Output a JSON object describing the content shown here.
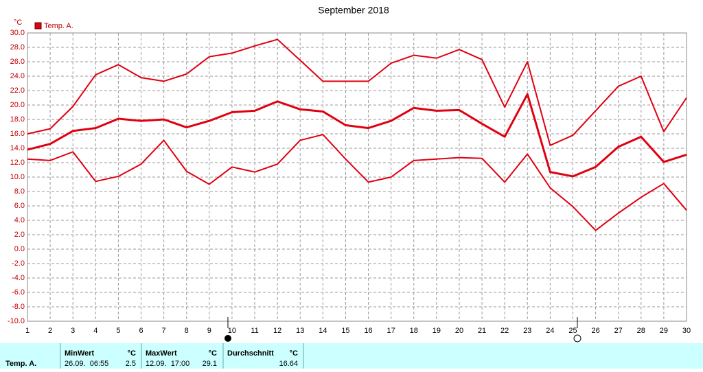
{
  "chart_data": {
    "type": "line",
    "title": "September 2018",
    "ylabel": "°C",
    "x": [
      1,
      2,
      3,
      4,
      5,
      6,
      7,
      8,
      9,
      10,
      11,
      12,
      13,
      14,
      15,
      16,
      17,
      18,
      19,
      20,
      21,
      22,
      23,
      24,
      25,
      26,
      27,
      28,
      29,
      30
    ],
    "xlim": [
      1,
      30
    ],
    "xticks": [
      1,
      2,
      3,
      4,
      5,
      6,
      7,
      8,
      9,
      10,
      11,
      12,
      13,
      14,
      15,
      16,
      17,
      18,
      19,
      20,
      21,
      22,
      23,
      24,
      25,
      26,
      27,
      28,
      29,
      30
    ],
    "ylim": [
      -10,
      30
    ],
    "yticks": [
      {
        "value": -10,
        "label": "-10.0"
      },
      {
        "value": -8,
        "label": "-8.0"
      },
      {
        "value": -6,
        "label": "-6.0"
      },
      {
        "value": -4,
        "label": "-4.0"
      },
      {
        "value": -2,
        "label": "-2.0"
      },
      {
        "value": 0,
        "label": "0.0"
      },
      {
        "value": 2,
        "label": "2.0"
      },
      {
        "value": 4,
        "label": "4.0"
      },
      {
        "value": 6,
        "label": "6.0"
      },
      {
        "value": 8,
        "label": "8.0"
      },
      {
        "value": 10,
        "label": "10.0"
      },
      {
        "value": 12,
        "label": "12.0"
      },
      {
        "value": 14,
        "label": "14.0"
      },
      {
        "value": 16,
        "label": "16.0"
      },
      {
        "value": 18,
        "label": "18.0"
      },
      {
        "value": 20,
        "label": "20.0"
      },
      {
        "value": 22,
        "label": "22.0"
      },
      {
        "value": 24,
        "label": "24.0"
      },
      {
        "value": 26,
        "label": "26.0"
      },
      {
        "value": 28,
        "label": "28.0"
      },
      {
        "value": 30,
        "label": "30.0"
      }
    ],
    "grid": true,
    "series": [
      {
        "name": "Temp. A.",
        "color": "#e00010",
        "values": [
          13.8,
          14.6,
          16.4,
          16.8,
          18.1,
          17.8,
          18.0,
          16.9,
          17.8,
          19.0,
          19.2,
          20.5,
          19.4,
          19.1,
          17.2,
          16.8,
          17.8,
          19.6,
          19.2,
          19.3,
          17.4,
          15.6,
          21.5,
          10.7,
          10.1,
          11.4,
          14.2,
          15.6,
          12.1,
          13.1
        ]
      },
      {
        "color": "#e00010",
        "values": [
          16.0,
          16.7,
          19.8,
          24.2,
          25.6,
          23.8,
          23.3,
          24.3,
          26.7,
          27.2,
          28.2,
          29.1,
          26.2,
          23.3,
          23.3,
          23.3,
          25.8,
          26.9,
          26.5,
          27.7,
          26.3,
          19.7,
          26.0,
          14.4,
          15.8,
          19.2,
          22.6,
          24.0,
          16.3,
          21.0
        ]
      },
      {
        "color": "#e00010",
        "values": [
          12.5,
          12.3,
          13.5,
          9.4,
          10.1,
          11.8,
          15.1,
          10.8,
          9.0,
          11.4,
          10.7,
          11.8,
          15.1,
          15.9,
          12.5,
          9.3,
          10.0,
          12.3,
          12.5,
          12.7,
          12.6,
          9.3,
          13.2,
          8.5,
          5.9,
          2.6,
          5.0,
          7.2,
          9.1,
          5.4
        ]
      }
    ]
  },
  "summary": {
    "row_label": "Temp. A.",
    "columns": [
      {
        "header": "MinWert",
        "unit": "°C",
        "time": "26.09.  06:55",
        "value": 2.5
      },
      {
        "header": "MaxWert",
        "unit": "°C",
        "time": "12.09.  17:00",
        "value": 29.1
      },
      {
        "header": "Durchschnitt",
        "unit": "°C",
        "value": 16.64
      }
    ]
  }
}
